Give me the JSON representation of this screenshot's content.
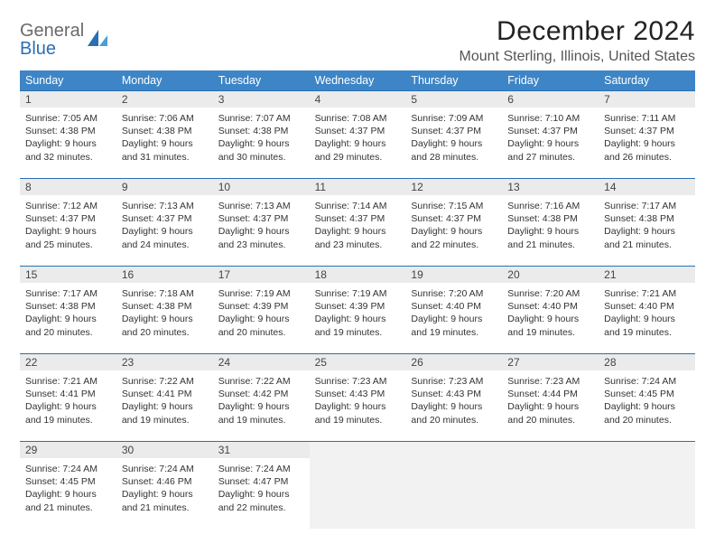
{
  "brand": {
    "part1": "General",
    "part2": "Blue"
  },
  "title": "December 2024",
  "location": "Mount Sterling, Illinois, United States",
  "colors": {
    "header_bg": "#3d85c6",
    "header_text": "#ffffff",
    "rule": "#2a6fb5",
    "daynum_bg": "#ebebeb",
    "empty_bg": "#f2f2f2",
    "text": "#333333",
    "brand_gray": "#6a6a6a",
    "brand_blue": "#2a6fb5"
  },
  "layout": {
    "columns": 7,
    "font_family": "Arial",
    "title_fontsize": 30,
    "location_fontsize": 16,
    "weekday_fontsize": 12.5,
    "info_fontsize": 10.5
  },
  "weekdays": [
    "Sunday",
    "Monday",
    "Tuesday",
    "Wednesday",
    "Thursday",
    "Friday",
    "Saturday"
  ],
  "weeks": [
    [
      {
        "n": "1",
        "sr": "Sunrise: 7:05 AM",
        "ss": "Sunset: 4:38 PM",
        "d1": "Daylight: 9 hours",
        "d2": "and 32 minutes."
      },
      {
        "n": "2",
        "sr": "Sunrise: 7:06 AM",
        "ss": "Sunset: 4:38 PM",
        "d1": "Daylight: 9 hours",
        "d2": "and 31 minutes."
      },
      {
        "n": "3",
        "sr": "Sunrise: 7:07 AM",
        "ss": "Sunset: 4:38 PM",
        "d1": "Daylight: 9 hours",
        "d2": "and 30 minutes."
      },
      {
        "n": "4",
        "sr": "Sunrise: 7:08 AM",
        "ss": "Sunset: 4:37 PM",
        "d1": "Daylight: 9 hours",
        "d2": "and 29 minutes."
      },
      {
        "n": "5",
        "sr": "Sunrise: 7:09 AM",
        "ss": "Sunset: 4:37 PM",
        "d1": "Daylight: 9 hours",
        "d2": "and 28 minutes."
      },
      {
        "n": "6",
        "sr": "Sunrise: 7:10 AM",
        "ss": "Sunset: 4:37 PM",
        "d1": "Daylight: 9 hours",
        "d2": "and 27 minutes."
      },
      {
        "n": "7",
        "sr": "Sunrise: 7:11 AM",
        "ss": "Sunset: 4:37 PM",
        "d1": "Daylight: 9 hours",
        "d2": "and 26 minutes."
      }
    ],
    [
      {
        "n": "8",
        "sr": "Sunrise: 7:12 AM",
        "ss": "Sunset: 4:37 PM",
        "d1": "Daylight: 9 hours",
        "d2": "and 25 minutes."
      },
      {
        "n": "9",
        "sr": "Sunrise: 7:13 AM",
        "ss": "Sunset: 4:37 PM",
        "d1": "Daylight: 9 hours",
        "d2": "and 24 minutes."
      },
      {
        "n": "10",
        "sr": "Sunrise: 7:13 AM",
        "ss": "Sunset: 4:37 PM",
        "d1": "Daylight: 9 hours",
        "d2": "and 23 minutes."
      },
      {
        "n": "11",
        "sr": "Sunrise: 7:14 AM",
        "ss": "Sunset: 4:37 PM",
        "d1": "Daylight: 9 hours",
        "d2": "and 23 minutes."
      },
      {
        "n": "12",
        "sr": "Sunrise: 7:15 AM",
        "ss": "Sunset: 4:37 PM",
        "d1": "Daylight: 9 hours",
        "d2": "and 22 minutes."
      },
      {
        "n": "13",
        "sr": "Sunrise: 7:16 AM",
        "ss": "Sunset: 4:38 PM",
        "d1": "Daylight: 9 hours",
        "d2": "and 21 minutes."
      },
      {
        "n": "14",
        "sr": "Sunrise: 7:17 AM",
        "ss": "Sunset: 4:38 PM",
        "d1": "Daylight: 9 hours",
        "d2": "and 21 minutes."
      }
    ],
    [
      {
        "n": "15",
        "sr": "Sunrise: 7:17 AM",
        "ss": "Sunset: 4:38 PM",
        "d1": "Daylight: 9 hours",
        "d2": "and 20 minutes."
      },
      {
        "n": "16",
        "sr": "Sunrise: 7:18 AM",
        "ss": "Sunset: 4:38 PM",
        "d1": "Daylight: 9 hours",
        "d2": "and 20 minutes."
      },
      {
        "n": "17",
        "sr": "Sunrise: 7:19 AM",
        "ss": "Sunset: 4:39 PM",
        "d1": "Daylight: 9 hours",
        "d2": "and 20 minutes."
      },
      {
        "n": "18",
        "sr": "Sunrise: 7:19 AM",
        "ss": "Sunset: 4:39 PM",
        "d1": "Daylight: 9 hours",
        "d2": "and 19 minutes."
      },
      {
        "n": "19",
        "sr": "Sunrise: 7:20 AM",
        "ss": "Sunset: 4:40 PM",
        "d1": "Daylight: 9 hours",
        "d2": "and 19 minutes."
      },
      {
        "n": "20",
        "sr": "Sunrise: 7:20 AM",
        "ss": "Sunset: 4:40 PM",
        "d1": "Daylight: 9 hours",
        "d2": "and 19 minutes."
      },
      {
        "n": "21",
        "sr": "Sunrise: 7:21 AM",
        "ss": "Sunset: 4:40 PM",
        "d1": "Daylight: 9 hours",
        "d2": "and 19 minutes."
      }
    ],
    [
      {
        "n": "22",
        "sr": "Sunrise: 7:21 AM",
        "ss": "Sunset: 4:41 PM",
        "d1": "Daylight: 9 hours",
        "d2": "and 19 minutes."
      },
      {
        "n": "23",
        "sr": "Sunrise: 7:22 AM",
        "ss": "Sunset: 4:41 PM",
        "d1": "Daylight: 9 hours",
        "d2": "and 19 minutes."
      },
      {
        "n": "24",
        "sr": "Sunrise: 7:22 AM",
        "ss": "Sunset: 4:42 PM",
        "d1": "Daylight: 9 hours",
        "d2": "and 19 minutes."
      },
      {
        "n": "25",
        "sr": "Sunrise: 7:23 AM",
        "ss": "Sunset: 4:43 PM",
        "d1": "Daylight: 9 hours",
        "d2": "and 19 minutes."
      },
      {
        "n": "26",
        "sr": "Sunrise: 7:23 AM",
        "ss": "Sunset: 4:43 PM",
        "d1": "Daylight: 9 hours",
        "d2": "and 20 minutes."
      },
      {
        "n": "27",
        "sr": "Sunrise: 7:23 AM",
        "ss": "Sunset: 4:44 PM",
        "d1": "Daylight: 9 hours",
        "d2": "and 20 minutes."
      },
      {
        "n": "28",
        "sr": "Sunrise: 7:24 AM",
        "ss": "Sunset: 4:45 PM",
        "d1": "Daylight: 9 hours",
        "d2": "and 20 minutes."
      }
    ],
    [
      {
        "n": "29",
        "sr": "Sunrise: 7:24 AM",
        "ss": "Sunset: 4:45 PM",
        "d1": "Daylight: 9 hours",
        "d2": "and 21 minutes."
      },
      {
        "n": "30",
        "sr": "Sunrise: 7:24 AM",
        "ss": "Sunset: 4:46 PM",
        "d1": "Daylight: 9 hours",
        "d2": "and 21 minutes."
      },
      {
        "n": "31",
        "sr": "Sunrise: 7:24 AM",
        "ss": "Sunset: 4:47 PM",
        "d1": "Daylight: 9 hours",
        "d2": "and 22 minutes."
      },
      null,
      null,
      null,
      null
    ]
  ]
}
